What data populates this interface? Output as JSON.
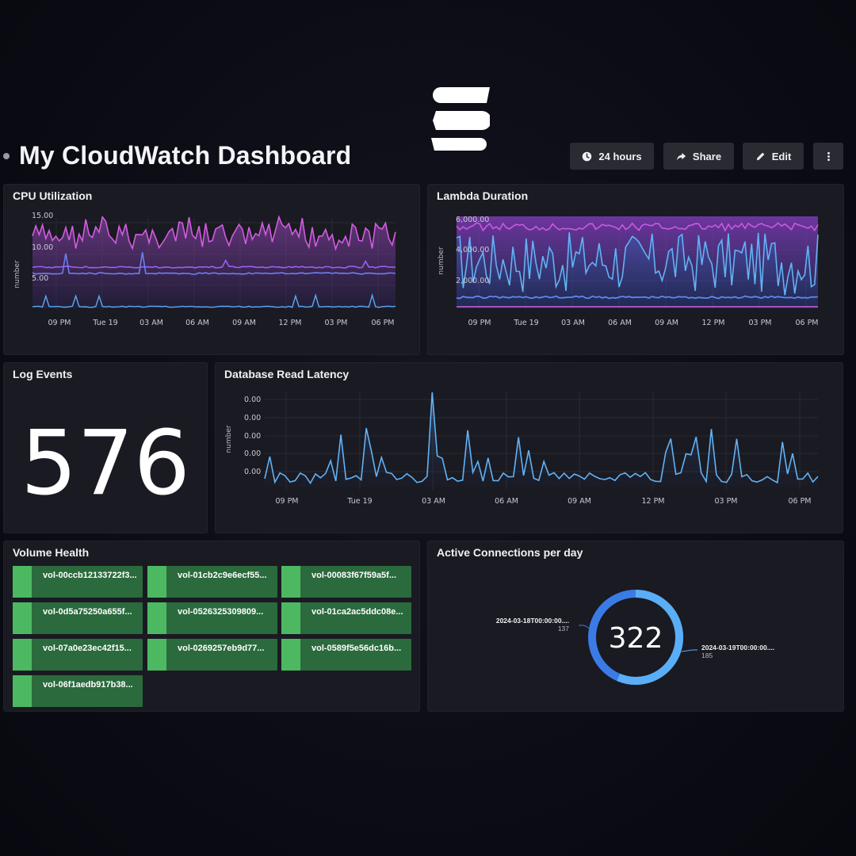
{
  "colors": {
    "background": "#0b0b14",
    "panel": "#1a1a22",
    "button": "#2a2a33",
    "cpu_magenta": "#d25ce0",
    "cpu_purple": "#8a5cf0",
    "cpu_blue": "#6a7ff5",
    "line_lightblue": "#5aa9f0",
    "volume_green": "#2b6a3c",
    "volume_green_accent": "#4cb962",
    "donut_dark_blue": "#3b7be6",
    "donut_light_blue": "#5aaef5"
  },
  "header": {
    "title": "My CloudWatch Dashboard",
    "logo_icon": "brand-s-logo",
    "buttons": {
      "time_range": {
        "label": "24 hours",
        "icon": "clock-icon"
      },
      "share": {
        "label": "Share",
        "icon": "share-icon"
      },
      "edit": {
        "label": "Edit",
        "icon": "pencil-icon"
      },
      "more": {
        "icon": "vertical-ellipsis-icon"
      }
    }
  },
  "x_ticks": [
    "09 PM",
    "Tue 19",
    "03 AM",
    "06 AM",
    "09 AM",
    "12 PM",
    "03 PM",
    "06 PM"
  ],
  "cpu": {
    "title": "CPU Utilization",
    "ylabel": "number",
    "yticks": [
      "15.00",
      "10.00",
      "5.00"
    ]
  },
  "lambda": {
    "title": "Lambda Duration",
    "ylabel": "number",
    "yticks": [
      "6,000.00",
      "4,000.00",
      "2,000.00"
    ]
  },
  "log_events": {
    "title": "Log Events",
    "value": "576"
  },
  "db_latency": {
    "title": "Database Read Latency",
    "ylabel": "number",
    "yticks": [
      "0.00",
      "0.00",
      "0.00",
      "0.00",
      "0.00"
    ]
  },
  "volume_health": {
    "title": "Volume Health",
    "volumes": [
      "vol-00ccb12133722f3...",
      "vol-01cb2c9e6ecf55...",
      "vol-00083f67f59a5f...",
      "vol-0d5a75250a655f...",
      "vol-0526325309809...",
      "vol-01ca2ac5ddc08e...",
      "vol-07a0e23ec42f15...",
      "vol-0269257eb9d77...",
      "vol-0589f5e56dc16b...",
      "vol-06f1aedb917b38..."
    ]
  },
  "connections": {
    "title": "Active Connections per day",
    "total": "322",
    "slices": [
      {
        "label": "2024-03-18T00:00:00....",
        "value": "137"
      },
      {
        "label": "2024-03-19T00:00:00....",
        "value": "185"
      }
    ]
  }
}
